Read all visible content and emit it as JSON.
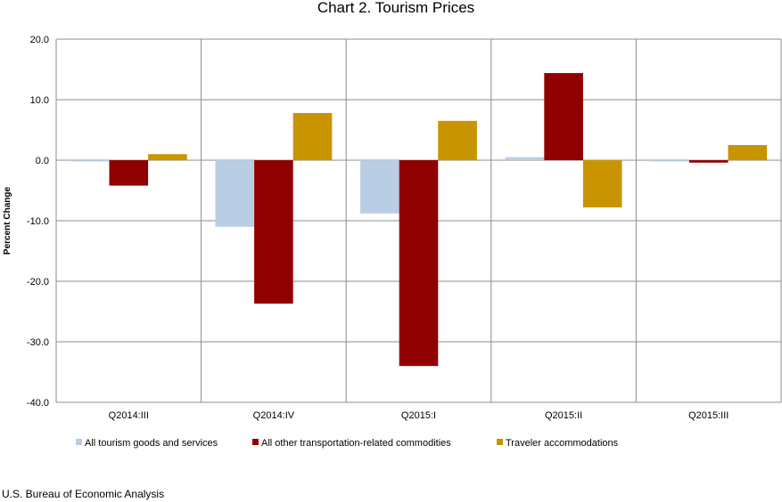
{
  "chart_data": {
    "type": "bar",
    "title": "Chart 2. Tourism Prices",
    "ylabel": "Percent Change",
    "xlabel": "",
    "ylim": [
      -40,
      20
    ],
    "yticks": [
      "20.0",
      "10.0",
      "0.0",
      "-10.0",
      "-20.0",
      "-30.0",
      "-40.0"
    ],
    "ytick_values": [
      20,
      10,
      0,
      -10,
      -20,
      -30,
      -40
    ],
    "categories": [
      "Q2014:III",
      "Q2014:IV",
      "Q2015:I",
      "Q2015:II",
      "Q2015:III"
    ],
    "grid": true,
    "legend_position": "bottom",
    "series": [
      {
        "name": "All tourism goods and services",
        "color": "#b9cde5",
        "values": [
          -0.2,
          -11.0,
          -8.8,
          0.5,
          -0.2
        ]
      },
      {
        "name": "All other transportation-related commodities",
        "color": "#900000",
        "values": [
          -4.2,
          -23.7,
          -34.0,
          14.4,
          -0.4
        ]
      },
      {
        "name": "Traveler accommodations",
        "color": "#c89400",
        "values": [
          1.0,
          7.8,
          6.5,
          -7.8,
          2.5
        ]
      }
    ]
  },
  "source": "U.S. Bureau of Economic Analysis"
}
